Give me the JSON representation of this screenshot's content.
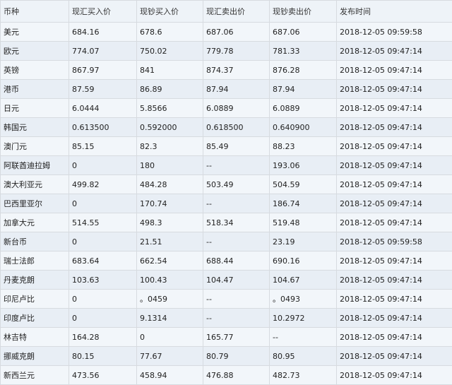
{
  "table": {
    "headers": [
      "币种",
      "现汇买入价",
      "现钞买入价",
      "现汇卖出价",
      "现钞卖出价",
      "发布时间"
    ],
    "rows": [
      [
        "美元",
        "684.16",
        "678.6",
        "687.06",
        "687.06",
        "2018-12-05 09:59:58"
      ],
      [
        "欧元",
        "774.07",
        "750.02",
        "779.78",
        "781.33",
        "2018-12-05 09:47:14"
      ],
      [
        "英镑",
        "867.97",
        "841",
        "874.37",
        "876.28",
        "2018-12-05 09:47:14"
      ],
      [
        "港币",
        "87.59",
        "86.89",
        "87.94",
        "87.94",
        "2018-12-05 09:47:14"
      ],
      [
        "日元",
        "6.0444",
        "5.8566",
        "6.0889",
        "6.0889",
        "2018-12-05 09:47:14"
      ],
      [
        "韩国元",
        "0.613500",
        "0.592000",
        "0.618500",
        "0.640900",
        "2018-12-05 09:47:14"
      ],
      [
        "澳门元",
        "85.15",
        "82.3",
        "85.49",
        "88.23",
        "2018-12-05 09:47:14"
      ],
      [
        "阿联酋迪拉姆",
        "0",
        "180",
        "--",
        "193.06",
        "2018-12-05 09:47:14"
      ],
      [
        "澳大利亚元",
        "499.82",
        "484.28",
        "503.49",
        "504.59",
        "2018-12-05 09:47:14"
      ],
      [
        "巴西里亚尔",
        "0",
        "170.74",
        "--",
        "186.74",
        "2018-12-05 09:47:14"
      ],
      [
        "加拿大元",
        "514.55",
        "498.3",
        "518.34",
        "519.48",
        "2018-12-05 09:47:14"
      ],
      [
        "新台币",
        "0",
        "21.51",
        "--",
        "23.19",
        "2018-12-05 09:59:58"
      ],
      [
        "瑞士法郎",
        "683.64",
        "662.54",
        "688.44",
        "690.16",
        "2018-12-05 09:47:14"
      ],
      [
        "丹麦克朗",
        "103.63",
        "100.43",
        "104.47",
        "104.67",
        "2018-12-05 09:47:14"
      ],
      [
        "印尼卢比",
        "0",
        "。0459",
        "--",
        "。0493",
        "2018-12-05 09:47:14"
      ],
      [
        "印度卢比",
        "0",
        "9.1314",
        "--",
        "10.2972",
        "2018-12-05 09:47:14"
      ],
      [
        "林吉特",
        "164.28",
        "0",
        "165.77",
        "--",
        "2018-12-05 09:47:14"
      ],
      [
        "挪威克朗",
        "80.15",
        "77.67",
        "80.79",
        "80.95",
        "2018-12-05 09:47:14"
      ],
      [
        "新西兰元",
        "473.56",
        "458.94",
        "476.88",
        "482.73",
        "2018-12-05 09:47:14"
      ]
    ]
  }
}
